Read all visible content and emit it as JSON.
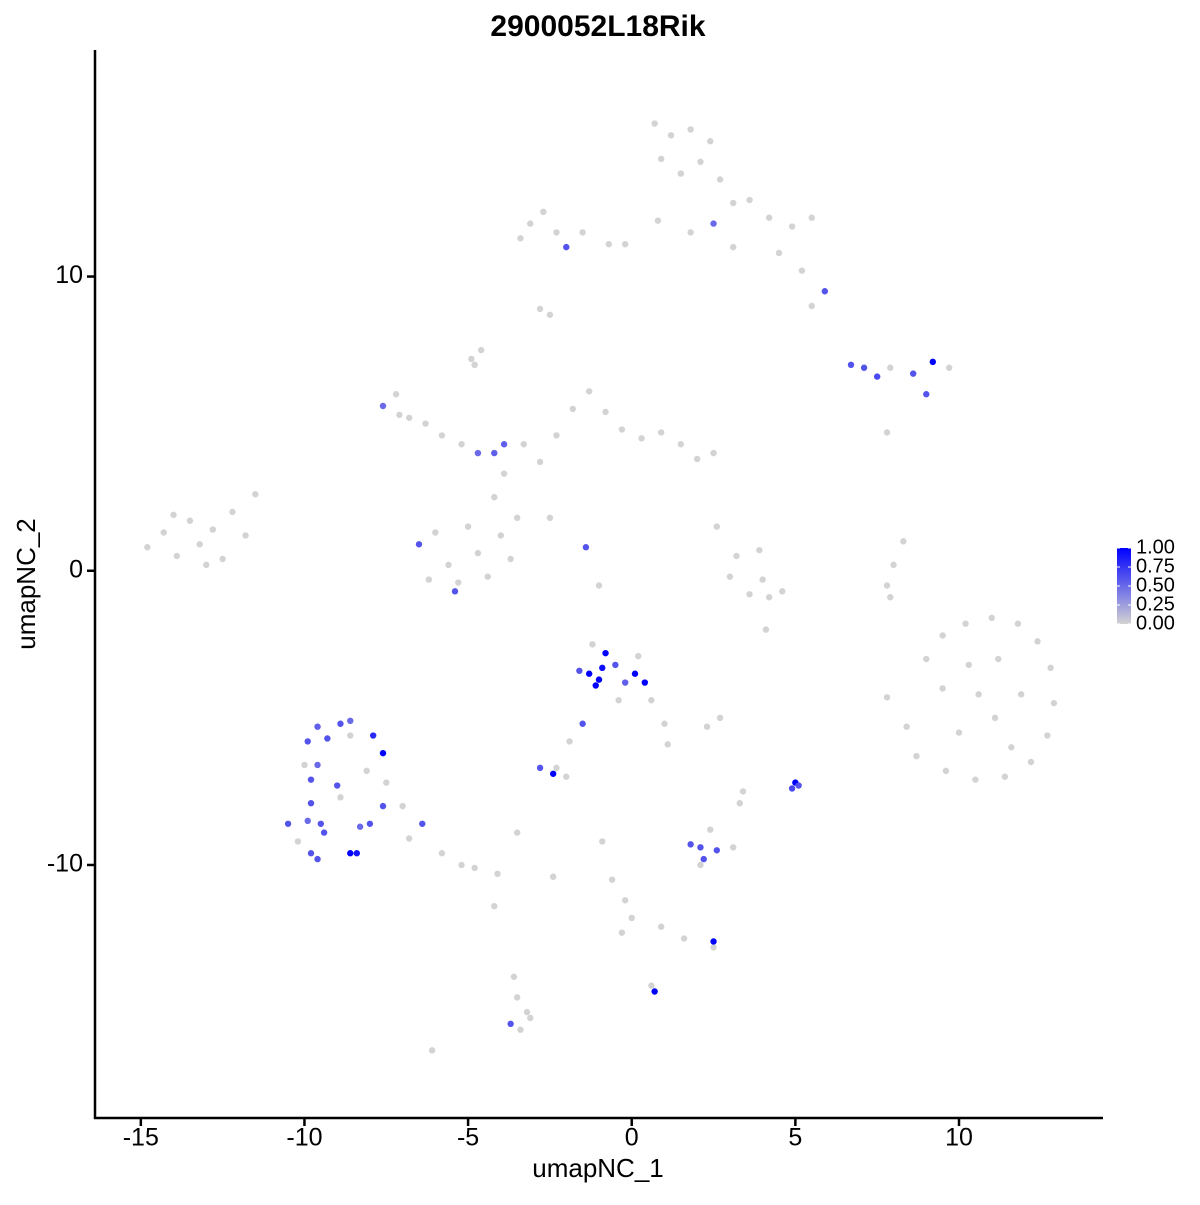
{
  "chart_data": {
    "type": "scatter",
    "title": "2900052L18Rik",
    "x_label": "umapNC_1",
    "y_label": "umapNC_2",
    "xlim": [
      -16.4,
      14.4
    ],
    "ylim": [
      -18.6,
      17.7
    ],
    "xticks": [
      -15,
      -10,
      -5,
      0,
      5,
      10
    ],
    "yticks": [
      -10,
      0,
      10
    ],
    "low_color": "#d3d3d3",
    "high_color": "#0000ff",
    "clim": [
      0,
      1
    ],
    "colorbar_ticks": [
      {
        "value": 0,
        "label": "0.00"
      },
      {
        "value": 0.25,
        "label": "0.25"
      },
      {
        "value": 0.5,
        "label": "0.50"
      },
      {
        "value": 0.75,
        "label": "0.75"
      },
      {
        "value": 1,
        "label": "1.00"
      }
    ],
    "points": [
      {
        "x": -14.8,
        "y": 0.8,
        "expression": 0
      },
      {
        "x": -14.3,
        "y": 1.3,
        "expression": 0
      },
      {
        "x": -13.9,
        "y": 0.5,
        "expression": 0
      },
      {
        "x": -13.5,
        "y": 1.7,
        "expression": 0
      },
      {
        "x": -13.2,
        "y": 0.9,
        "expression": 0
      },
      {
        "x": -12.8,
        "y": 1.4,
        "expression": 0
      },
      {
        "x": -12.5,
        "y": 0.4,
        "expression": 0
      },
      {
        "x": -12.2,
        "y": 2.0,
        "expression": 0
      },
      {
        "x": -11.8,
        "y": 1.2,
        "expression": 0
      },
      {
        "x": -11.5,
        "y": 2.6,
        "expression": 0
      },
      {
        "x": -13.0,
        "y": 0.2,
        "expression": 0
      },
      {
        "x": -14.0,
        "y": 1.9,
        "expression": 0
      },
      {
        "x": -7.6,
        "y": 5.6,
        "expression": 0.5
      },
      {
        "x": -7.2,
        "y": 6.0,
        "expression": 0
      },
      {
        "x": -6.8,
        "y": 5.2,
        "expression": 0
      },
      {
        "x": -6.3,
        "y": 5.0,
        "expression": 0
      },
      {
        "x": -5.8,
        "y": 4.6,
        "expression": 0
      },
      {
        "x": -5.2,
        "y": 4.3,
        "expression": 0
      },
      {
        "x": -4.7,
        "y": 4.0,
        "expression": 0.5
      },
      {
        "x": -4.2,
        "y": 4.0,
        "expression": 0.55
      },
      {
        "x": -3.9,
        "y": 4.3,
        "expression": 0.55
      },
      {
        "x": -4.9,
        "y": 7.2,
        "expression": 0
      },
      {
        "x": -6.5,
        "y": 0.9,
        "expression": 0.6
      },
      {
        "x": -6.0,
        "y": 1.3,
        "expression": 0
      },
      {
        "x": -5.6,
        "y": 0.2,
        "expression": 0
      },
      {
        "x": -5.4,
        "y": -0.7,
        "expression": 0.6
      },
      {
        "x": -5.0,
        "y": 1.5,
        "expression": 0
      },
      {
        "x": -4.7,
        "y": 0.6,
        "expression": 0
      },
      {
        "x": -4.4,
        "y": -0.2,
        "expression": 0
      },
      {
        "x": -4.0,
        "y": 1.2,
        "expression": 0
      },
      {
        "x": -3.7,
        "y": 0.4,
        "expression": 0
      },
      {
        "x": -3.5,
        "y": 1.8,
        "expression": 0
      },
      {
        "x": -4.2,
        "y": 2.5,
        "expression": 0
      },
      {
        "x": -3.9,
        "y": 3.3,
        "expression": 0
      },
      {
        "x": -5.3,
        "y": -0.4,
        "expression": 0
      },
      {
        "x": -6.2,
        "y": -0.3,
        "expression": 0
      },
      {
        "x": -3.3,
        "y": 4.3,
        "expression": 0
      },
      {
        "x": -2.8,
        "y": 3.7,
        "expression": 0
      },
      {
        "x": -2.3,
        "y": 4.6,
        "expression": 0
      },
      {
        "x": -1.8,
        "y": 5.5,
        "expression": 0
      },
      {
        "x": -1.3,
        "y": 6.1,
        "expression": 0
      },
      {
        "x": -0.8,
        "y": 5.4,
        "expression": 0
      },
      {
        "x": -0.3,
        "y": 4.8,
        "expression": 0
      },
      {
        "x": 0.3,
        "y": 4.5,
        "expression": 0
      },
      {
        "x": 0.9,
        "y": 4.7,
        "expression": 0
      },
      {
        "x": 1.5,
        "y": 4.3,
        "expression": 0
      },
      {
        "x": 2.0,
        "y": 3.8,
        "expression": 0
      },
      {
        "x": 2.5,
        "y": 4.0,
        "expression": 0
      },
      {
        "x": -1.4,
        "y": 0.8,
        "expression": 0.6
      },
      {
        "x": -2.5,
        "y": 1.8,
        "expression": 0
      },
      {
        "x": 0.7,
        "y": 15.2,
        "expression": 0
      },
      {
        "x": 1.2,
        "y": 14.8,
        "expression": 0
      },
      {
        "x": 1.8,
        "y": 15.0,
        "expression": 0
      },
      {
        "x": 2.4,
        "y": 14.6,
        "expression": 0
      },
      {
        "x": 0.9,
        "y": 14.0,
        "expression": 0
      },
      {
        "x": 1.5,
        "y": 13.5,
        "expression": 0
      },
      {
        "x": 2.1,
        "y": 13.9,
        "expression": 0
      },
      {
        "x": 2.7,
        "y": 13.3,
        "expression": 0
      },
      {
        "x": 3.1,
        "y": 12.5,
        "expression": 0
      },
      {
        "x": 2.5,
        "y": 11.8,
        "expression": 0.5
      },
      {
        "x": 3.6,
        "y": 12.6,
        "expression": 0
      },
      {
        "x": 4.2,
        "y": 12.0,
        "expression": 0
      },
      {
        "x": 4.9,
        "y": 11.7,
        "expression": 0
      },
      {
        "x": 5.5,
        "y": 12.0,
        "expression": 0
      },
      {
        "x": 4.5,
        "y": 10.8,
        "expression": 0
      },
      {
        "x": 5.2,
        "y": 10.2,
        "expression": 0
      },
      {
        "x": 5.9,
        "y": 9.5,
        "expression": 0.6
      },
      {
        "x": 5.5,
        "y": 9.0,
        "expression": 0
      },
      {
        "x": 3.1,
        "y": 11.0,
        "expression": 0
      },
      {
        "x": 1.8,
        "y": 11.5,
        "expression": 0
      },
      {
        "x": 0.8,
        "y": 11.9,
        "expression": 0
      },
      {
        "x": -0.2,
        "y": 11.1,
        "expression": 0
      },
      {
        "x": -3.1,
        "y": 11.8,
        "expression": 0
      },
      {
        "x": -3.4,
        "y": 11.3,
        "expression": 0
      },
      {
        "x": -2.7,
        "y": 12.2,
        "expression": 0
      },
      {
        "x": -2.3,
        "y": 11.5,
        "expression": 0
      },
      {
        "x": -2.0,
        "y": 11.0,
        "expression": 0.6
      },
      {
        "x": -1.5,
        "y": 11.5,
        "expression": 0
      },
      {
        "x": -0.7,
        "y": 11.1,
        "expression": 0
      },
      {
        "x": -2.8,
        "y": 8.9,
        "expression": 0
      },
      {
        "x": 6.7,
        "y": 7.0,
        "expression": 0.6
      },
      {
        "x": 7.1,
        "y": 6.9,
        "expression": 0.6
      },
      {
        "x": 7.5,
        "y": 6.6,
        "expression": 0.65
      },
      {
        "x": 7.9,
        "y": 6.9,
        "expression": 0
      },
      {
        "x": 8.6,
        "y": 6.7,
        "expression": 0.6
      },
      {
        "x": 9.2,
        "y": 7.1,
        "expression": 1
      },
      {
        "x": 9.7,
        "y": 6.9,
        "expression": 0
      },
      {
        "x": 9.0,
        "y": 6.0,
        "expression": 0.6
      },
      {
        "x": 7.8,
        "y": 4.7,
        "expression": 0
      },
      {
        "x": 2.6,
        "y": 1.5,
        "expression": 0
      },
      {
        "x": 3.2,
        "y": 0.5,
        "expression": 0
      },
      {
        "x": 3.0,
        "y": -0.2,
        "expression": 0
      },
      {
        "x": 3.6,
        "y": -0.8,
        "expression": 0
      },
      {
        "x": 4.2,
        "y": -0.9,
        "expression": 0
      },
      {
        "x": 4.6,
        "y": -0.7,
        "expression": 0
      },
      {
        "x": 3.9,
        "y": 0.7,
        "expression": 0
      },
      {
        "x": 4.0,
        "y": -0.3,
        "expression": 0
      },
      {
        "x": 8.3,
        "y": 1.0,
        "expression": 0
      },
      {
        "x": 8.0,
        "y": 0.2,
        "expression": 0
      },
      {
        "x": 7.8,
        "y": -0.5,
        "expression": 0
      },
      {
        "x": 7.9,
        "y": -0.9,
        "expression": 0
      },
      {
        "x": 4.1,
        "y": -2.0,
        "expression": 0
      },
      {
        "x": 9.0,
        "y": -3.0,
        "expression": 0
      },
      {
        "x": 9.5,
        "y": -2.2,
        "expression": 0
      },
      {
        "x": 10.2,
        "y": -1.8,
        "expression": 0
      },
      {
        "x": 11.0,
        "y": -1.6,
        "expression": 0
      },
      {
        "x": 11.8,
        "y": -1.8,
        "expression": 0
      },
      {
        "x": 12.4,
        "y": -2.4,
        "expression": 0
      },
      {
        "x": 12.8,
        "y": -3.3,
        "expression": 0
      },
      {
        "x": 12.9,
        "y": -4.5,
        "expression": 0
      },
      {
        "x": 12.7,
        "y": -5.6,
        "expression": 0
      },
      {
        "x": 12.2,
        "y": -6.5,
        "expression": 0
      },
      {
        "x": 11.4,
        "y": -7.0,
        "expression": 0
      },
      {
        "x": 10.5,
        "y": -7.1,
        "expression": 0
      },
      {
        "x": 9.6,
        "y": -6.8,
        "expression": 0
      },
      {
        "x": 8.7,
        "y": -6.3,
        "expression": 0
      },
      {
        "x": 8.4,
        "y": -5.3,
        "expression": 0
      },
      {
        "x": 7.8,
        "y": -4.3,
        "expression": 0
      },
      {
        "x": 9.5,
        "y": -4.0,
        "expression": 0
      },
      {
        "x": 10.3,
        "y": -3.2,
        "expression": 0
      },
      {
        "x": 11.2,
        "y": -3.0,
        "expression": 0
      },
      {
        "x": 11.9,
        "y": -4.2,
        "expression": 0
      },
      {
        "x": 11.1,
        "y": -5.0,
        "expression": 0
      },
      {
        "x": 10.0,
        "y": -5.5,
        "expression": 0
      },
      {
        "x": 11.6,
        "y": -6.0,
        "expression": 0
      },
      {
        "x": 10.6,
        "y": -4.2,
        "expression": 0
      },
      {
        "x": -1.3,
        "y": -3.5,
        "expression": 1
      },
      {
        "x": -1.0,
        "y": -3.7,
        "expression": 1
      },
      {
        "x": -0.8,
        "y": -2.8,
        "expression": 1
      },
      {
        "x": -0.9,
        "y": -3.3,
        "expression": 0.95
      },
      {
        "x": -0.5,
        "y": -3.2,
        "expression": 0.6
      },
      {
        "x": 0.1,
        "y": -3.5,
        "expression": 1
      },
      {
        "x": 0.4,
        "y": -3.8,
        "expression": 1
      },
      {
        "x": -1.1,
        "y": -3.9,
        "expression": 1
      },
      {
        "x": -1.6,
        "y": -3.4,
        "expression": 0.6
      },
      {
        "x": -1.2,
        "y": -2.5,
        "expression": 0
      },
      {
        "x": 0.2,
        "y": -2.9,
        "expression": 0
      },
      {
        "x": -0.4,
        "y": -4.4,
        "expression": 0
      },
      {
        "x": 0.6,
        "y": -4.4,
        "expression": 0
      },
      {
        "x": 1.0,
        "y": -5.2,
        "expression": 0
      },
      {
        "x": 1.1,
        "y": -5.9,
        "expression": 0
      },
      {
        "x": -0.2,
        "y": -3.8,
        "expression": 0.55
      },
      {
        "x": -1.5,
        "y": -5.2,
        "expression": 0.6
      },
      {
        "x": -1.9,
        "y": -5.8,
        "expression": 0
      },
      {
        "x": -2.3,
        "y": -6.7,
        "expression": 0
      },
      {
        "x": -2.8,
        "y": -6.7,
        "expression": 0.6
      },
      {
        "x": -2.4,
        "y": -6.9,
        "expression": 1
      },
      {
        "x": -2.0,
        "y": -7.0,
        "expression": 0
      },
      {
        "x": 2.7,
        "y": -5.0,
        "expression": 0
      },
      {
        "x": 2.3,
        "y": -5.3,
        "expression": 0
      },
      {
        "x": 5.0,
        "y": -7.2,
        "expression": 1
      },
      {
        "x": 4.9,
        "y": -7.4,
        "expression": 0.65
      },
      {
        "x": 5.1,
        "y": -7.3,
        "expression": 0.6
      },
      {
        "x": 3.4,
        "y": -7.5,
        "expression": 0
      },
      {
        "x": 3.3,
        "y": -7.9,
        "expression": 0
      },
      {
        "x": 1.8,
        "y": -9.3,
        "expression": 0.6
      },
      {
        "x": 2.1,
        "y": -9.4,
        "expression": 0.6
      },
      {
        "x": 2.2,
        "y": -9.8,
        "expression": 0.6
      },
      {
        "x": 2.6,
        "y": -9.5,
        "expression": 0.6
      },
      {
        "x": 3.1,
        "y": -9.4,
        "expression": 0
      },
      {
        "x": 2.4,
        "y": -8.8,
        "expression": 0
      },
      {
        "x": 2.1,
        "y": -10.0,
        "expression": 0
      },
      {
        "x": -0.9,
        "y": -9.2,
        "expression": 0
      },
      {
        "x": -0.6,
        "y": -10.5,
        "expression": 0
      },
      {
        "x": -0.2,
        "y": -11.2,
        "expression": 0
      },
      {
        "x": 0.0,
        "y": -11.8,
        "expression": 0
      },
      {
        "x": -0.3,
        "y": -12.3,
        "expression": 0
      },
      {
        "x": 0.9,
        "y": -12.1,
        "expression": 0
      },
      {
        "x": 1.6,
        "y": -12.5,
        "expression": 0
      },
      {
        "x": 2.5,
        "y": -12.6,
        "expression": 1
      },
      {
        "x": 2.5,
        "y": -12.8,
        "expression": 0
      },
      {
        "x": 0.7,
        "y": -14.3,
        "expression": 1
      },
      {
        "x": 0.6,
        "y": -14.1,
        "expression": 0
      },
      {
        "x": -3.6,
        "y": -13.8,
        "expression": 0
      },
      {
        "x": -3.5,
        "y": -14.5,
        "expression": 0
      },
      {
        "x": -3.2,
        "y": -15.0,
        "expression": 0
      },
      {
        "x": -3.7,
        "y": -15.4,
        "expression": 0.6
      },
      {
        "x": -3.4,
        "y": -15.6,
        "expression": 0
      },
      {
        "x": -3.1,
        "y": -15.2,
        "expression": 0
      },
      {
        "x": -6.1,
        "y": -16.3,
        "expression": 0
      },
      {
        "x": -4.2,
        "y": -11.4,
        "expression": 0
      },
      {
        "x": -3.5,
        "y": -8.9,
        "expression": 0
      },
      {
        "x": -2.4,
        "y": -10.4,
        "expression": 0
      },
      {
        "x": -1.0,
        "y": -0.5,
        "expression": 0
      },
      {
        "x": -2.5,
        "y": 8.7,
        "expression": 0
      },
      {
        "x": -4.6,
        "y": 7.5,
        "expression": 0
      },
      {
        "x": -4.8,
        "y": 7.0,
        "expression": 0
      },
      {
        "x": -7.1,
        "y": 5.3,
        "expression": 0
      },
      {
        "x": -9.9,
        "y": -5.8,
        "expression": 0.6
      },
      {
        "x": -9.6,
        "y": -5.3,
        "expression": 0.55
      },
      {
        "x": -9.3,
        "y": -5.7,
        "expression": 0.6
      },
      {
        "x": -8.9,
        "y": -5.2,
        "expression": 0.6
      },
      {
        "x": -8.6,
        "y": -5.1,
        "expression": 0.5
      },
      {
        "x": -7.9,
        "y": -5.6,
        "expression": 0.8
      },
      {
        "x": -7.6,
        "y": -6.2,
        "expression": 1
      },
      {
        "x": -9.6,
        "y": -6.6,
        "expression": 0.5
      },
      {
        "x": -9.0,
        "y": -7.3,
        "expression": 0.6
      },
      {
        "x": -9.8,
        "y": -7.1,
        "expression": 0.6
      },
      {
        "x": -9.8,
        "y": -7.9,
        "expression": 0.6
      },
      {
        "x": -9.5,
        "y": -8.6,
        "expression": 0.6
      },
      {
        "x": -10.5,
        "y": -8.6,
        "expression": 0.6
      },
      {
        "x": -9.9,
        "y": -8.5,
        "expression": 0.5
      },
      {
        "x": -9.4,
        "y": -8.9,
        "expression": 0.6
      },
      {
        "x": -9.8,
        "y": -9.6,
        "expression": 0.6
      },
      {
        "x": -9.6,
        "y": -9.8,
        "expression": 0.6
      },
      {
        "x": -8.6,
        "y": -9.6,
        "expression": 1
      },
      {
        "x": -8.4,
        "y": -9.6,
        "expression": 0.9
      },
      {
        "x": -8.3,
        "y": -8.7,
        "expression": 0.5
      },
      {
        "x": -8.0,
        "y": -8.6,
        "expression": 0.6
      },
      {
        "x": -7.6,
        "y": -8.0,
        "expression": 0.6
      },
      {
        "x": -6.4,
        "y": -8.6,
        "expression": 0.6
      },
      {
        "x": -8.9,
        "y": -7.7,
        "expression": 0
      },
      {
        "x": -8.1,
        "y": -6.8,
        "expression": 0
      },
      {
        "x": -7.5,
        "y": -7.2,
        "expression": 0
      },
      {
        "x": -10.2,
        "y": -9.2,
        "expression": 0
      },
      {
        "x": -6.8,
        "y": -9.1,
        "expression": 0
      },
      {
        "x": -5.8,
        "y": -9.6,
        "expression": 0
      },
      {
        "x": -4.8,
        "y": -10.1,
        "expression": 0
      },
      {
        "x": -4.1,
        "y": -10.3,
        "expression": 0
      },
      {
        "x": -5.2,
        "y": -10.0,
        "expression": 0
      },
      {
        "x": -7.0,
        "y": -8.0,
        "expression": 0
      },
      {
        "x": -10.0,
        "y": -6.6,
        "expression": 0
      },
      {
        "x": -8.6,
        "y": -5.6,
        "expression": 0
      }
    ]
  }
}
